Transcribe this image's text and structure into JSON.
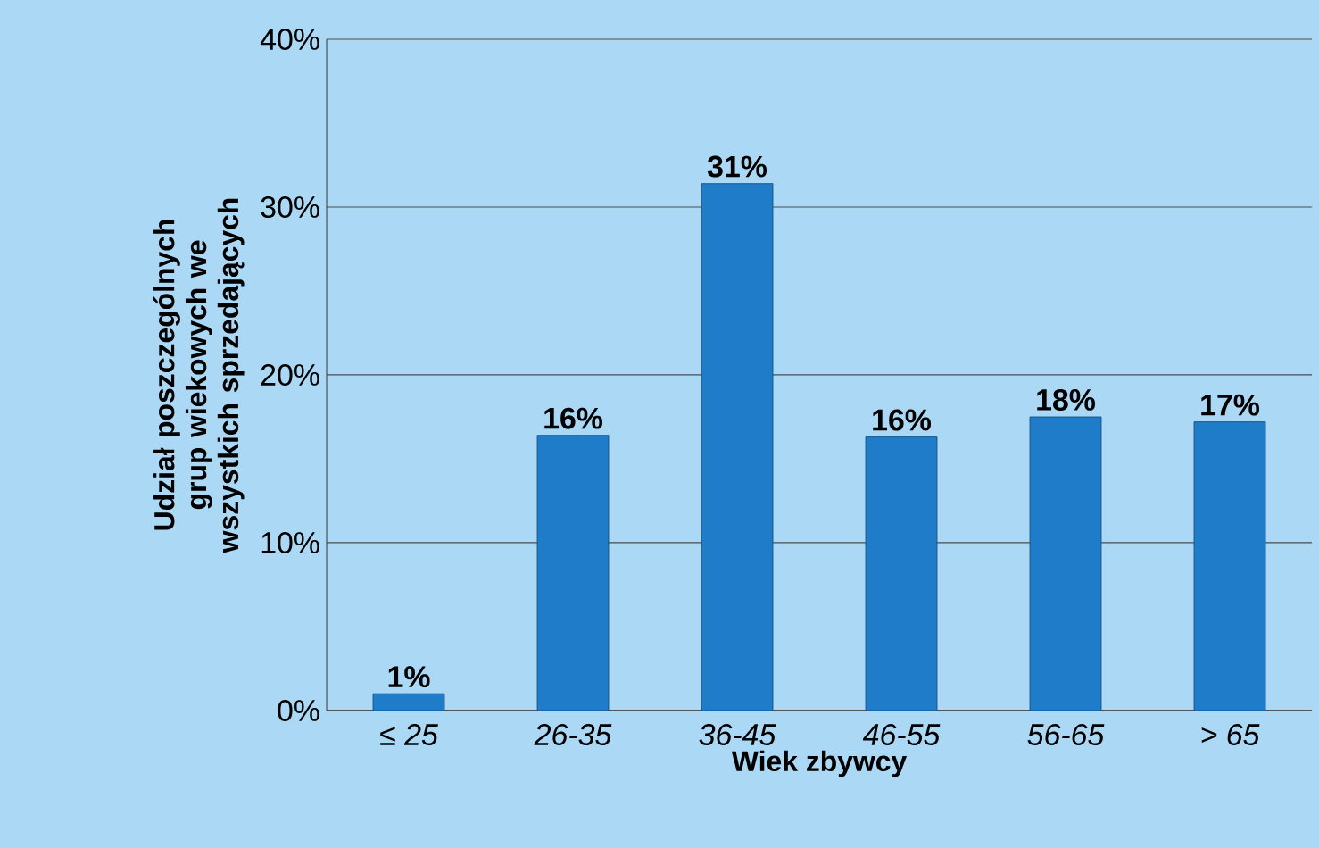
{
  "chart_data": {
    "type": "bar",
    "xlabel": "Wiek zbywcy",
    "ylabel": "Udział poszczególnych grup wiekowych we wszystkich sprzedających",
    "categories": [
      "≤ 25",
      "26-35",
      "36-45",
      "46-55",
      "56-65",
      "> 65"
    ],
    "values": [
      1.0,
      16.4,
      31.4,
      16.3,
      17.5,
      17.2
    ],
    "value_labels": [
      "1%",
      "16%",
      "31%",
      "16%",
      "18%",
      "17%"
    ],
    "color": "#1e7cc8",
    "ylim": [
      0,
      40
    ],
    "yticks": [
      {
        "value": 0,
        "label": "0%"
      },
      {
        "value": 10,
        "label": "10%"
      },
      {
        "value": 20,
        "label": "20%"
      },
      {
        "value": 30,
        "label": "30%"
      },
      {
        "value": 40,
        "label": "40%"
      }
    ],
    "grid": "y"
  }
}
